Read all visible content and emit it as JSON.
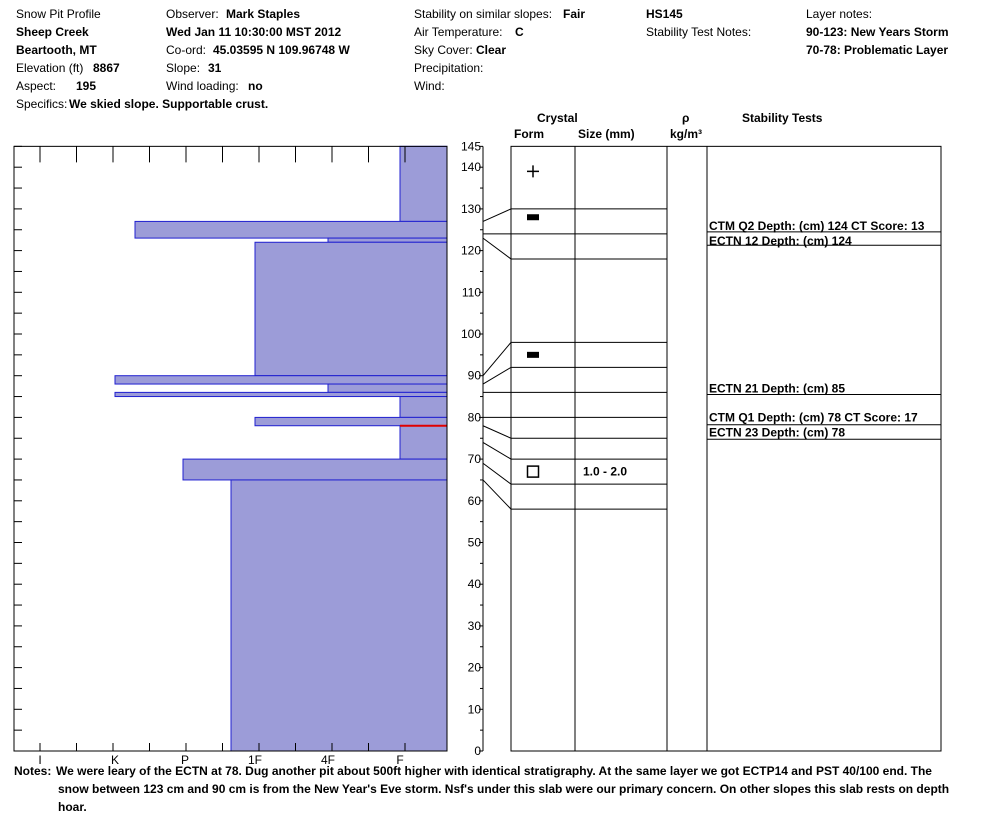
{
  "header": {
    "title": "Snow Pit Profile",
    "location": "Sheep Creek",
    "range": "Beartooth, MT",
    "elevation_label": "Elevation (ft)",
    "elevation_value": "8867",
    "aspect_label": "Aspect:",
    "aspect_value": "195",
    "specifics_label": "Specifics:",
    "specifics_value": "We skied slope. Supportable crust.",
    "observer_label": "Observer:",
    "observer_value": "Mark Staples",
    "datetime": "Wed Jan 11 10:30:00 MST 2012",
    "coord_label": "Co-ord:",
    "coord_value": "45.03595 N 109.96748 W",
    "slope_label": "Slope:",
    "slope_value": "31",
    "wind_loading_label": "Wind loading:",
    "wind_loading_value": "no",
    "stability_label": "Stability on similar slopes:",
    "stability_value": "Fair",
    "air_temp_label": "Air Temperature:",
    "air_temp_value": "C",
    "sky_label": "Sky Cover:",
    "sky_value": "Clear",
    "precip_label": "Precipitation:",
    "wind_label": "Wind:",
    "hs": "HS145",
    "stability_notes_label": "Stability Test Notes:",
    "layer_notes_label": "Layer notes:",
    "layer_notes": [
      "90-123: New Years Storm",
      "70-78: Problematic Layer"
    ]
  },
  "columns": {
    "crystal": "Crystal",
    "form": "Form",
    "size": "Size (mm)",
    "rho": "ρ",
    "density_unit": "kg/m³",
    "stability_tests": "Stability Tests"
  },
  "notes": {
    "label": "Notes:",
    "line1": "We were leary of the ECTN at 78.  Dug another pit about 500ft higher with identical stratigraphy.  At the same layer we got ECTP14 and PST 40/100 end.  The",
    "line2": "snow between 123 cm and 90 cm is from the New Year's Eve storm.  Nsf's under this slab were our primary concern.  On other slopes this slab rests on depth",
    "line3": "hoar."
  },
  "colors": {
    "hardness_fill": "#9c9cd8",
    "hardness_edge": "#2020d0",
    "weak_layer": "#e00000"
  },
  "chart_data": {
    "type": "bar",
    "orientation": "horizontal",
    "y_ticks": [
      0,
      10,
      20,
      30,
      40,
      50,
      60,
      70,
      80,
      90,
      100,
      110,
      120,
      130,
      140,
      145
    ],
    "ylim": [
      0,
      145
    ],
    "hardness_ticks": [
      "I",
      "K",
      "P",
      "1F",
      "4F",
      "F"
    ],
    "hardness_layers": [
      {
        "bottom": 127,
        "top": 145,
        "hardness": "F"
      },
      {
        "bottom": 123,
        "top": 127,
        "hardness": "K-"
      },
      {
        "bottom": 122,
        "top": 123,
        "hardness": "4F"
      },
      {
        "bottom": 90,
        "top": 122,
        "hardness": "1F"
      },
      {
        "bottom": 88,
        "top": 90,
        "hardness": "K"
      },
      {
        "bottom": 86,
        "top": 88,
        "hardness": "4F"
      },
      {
        "bottom": 85,
        "top": 86,
        "hardness": "K"
      },
      {
        "bottom": 80,
        "top": 85,
        "hardness": "F"
      },
      {
        "bottom": 78,
        "top": 80,
        "hardness": "1F"
      },
      {
        "bottom": 70,
        "top": 78,
        "hardness": "F"
      },
      {
        "bottom": 65,
        "top": 70,
        "hardness": "P+"
      },
      {
        "bottom": 0,
        "top": 65,
        "hardness": "1F+"
      }
    ],
    "weak_layer_depth": 78,
    "layer_boundaries": [
      {
        "left": 127,
        "right": 130
      },
      {
        "left": 124,
        "right": 124
      },
      {
        "left": 123,
        "right": 118
      },
      {
        "left": 90,
        "right": 98
      },
      {
        "left": 88,
        "right": 92
      },
      {
        "left": 86,
        "right": 86
      },
      {
        "left": 80,
        "right": 80
      },
      {
        "left": 78,
        "right": 75
      },
      {
        "left": 74,
        "right": 70
      },
      {
        "left": 69,
        "right": 64
      },
      {
        "left": 65,
        "right": 58
      }
    ],
    "crystals": [
      {
        "depth": 139,
        "symbol": "plus",
        "size": ""
      },
      {
        "depth": 128,
        "symbol": "rect",
        "size": ""
      },
      {
        "depth": 95,
        "symbol": "rect",
        "size": ""
      },
      {
        "depth": 67,
        "symbol": "square",
        "size": "1.0 - 2.0"
      }
    ],
    "stability_tests": [
      {
        "depth": 124,
        "text": "CTM Q2 Depth: (cm) 124 CT Score: 13"
      },
      {
        "depth": 124,
        "text": "ECTN 12  Depth: (cm) 124"
      },
      {
        "depth": 85,
        "text": "ECTN 21  Depth: (cm) 85"
      },
      {
        "depth": 78,
        "text": "CTM Q1 Depth: (cm) 78 CT Score: 17"
      },
      {
        "depth": 78,
        "text": "ECTN 23  Depth: (cm) 78"
      }
    ]
  }
}
